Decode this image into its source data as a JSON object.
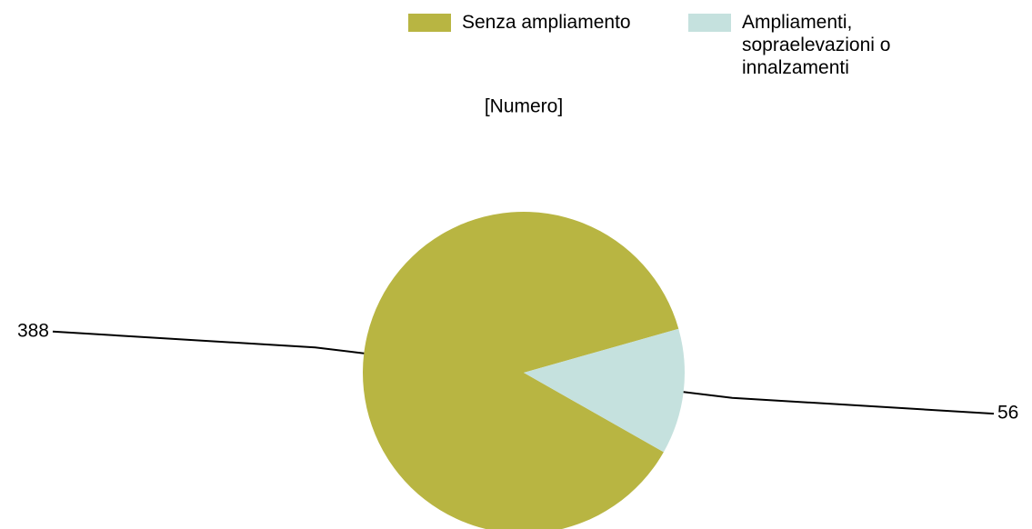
{
  "chart_data": {
    "type": "pie",
    "title": "[Numero]",
    "categories": [
      "Senza ampliamento",
      "Ampliamenti, sopraelevazioni o innalzamenti"
    ],
    "values": [
      388,
      56
    ],
    "colors": [
      "#b8b542",
      "#c5e1de"
    ],
    "legend": "top"
  }
}
